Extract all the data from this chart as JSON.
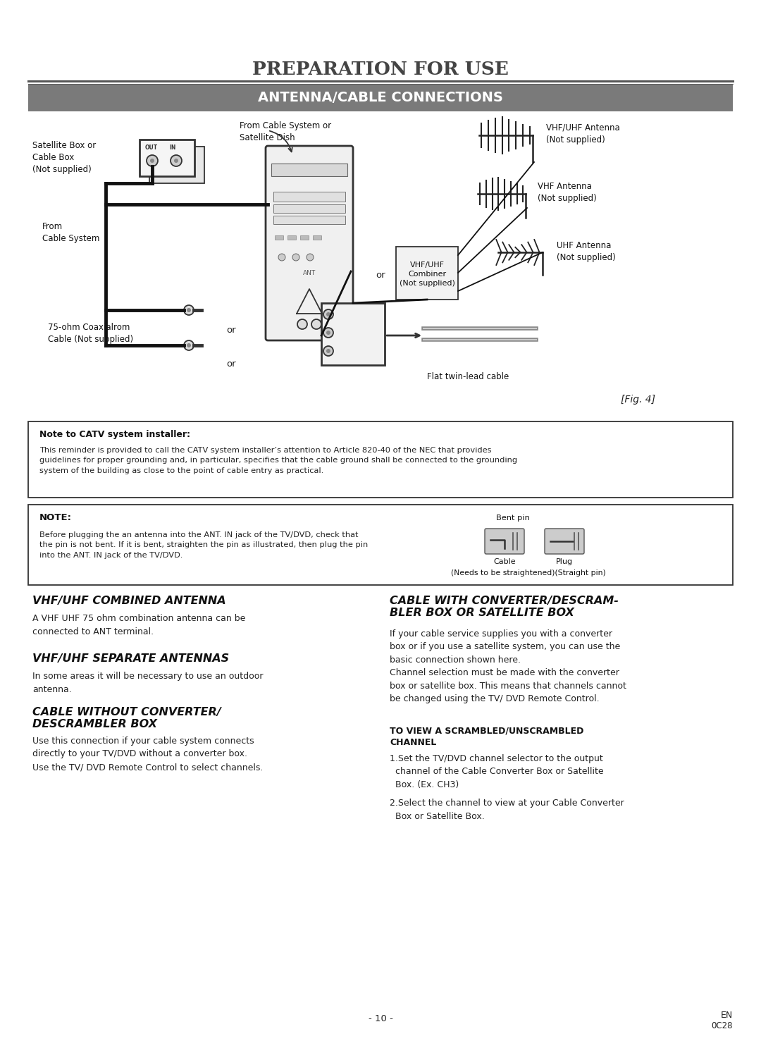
{
  "title": "PREPARATION FOR USE",
  "subtitle": "ANTENNA/CABLE CONNECTIONS",
  "subtitle_bg": "#7a7a7a",
  "subtitle_fg": "#ffffff",
  "bg_color": "#ffffff",
  "page_number": "- 10 -",
  "page_code_line1": "EN",
  "page_code_line2": "0C28",
  "catv_note_title": "Note to CATV system installer:",
  "catv_note_body": "This reminder is provided to call the CATV system installer’s attention to Article 820-40 of the NEC that provides\nguidelines for proper grounding and, in particular, specifies that the cable ground shall be connected to the grounding\nsystem of the building as close to the point of cable entry as practical.",
  "note_title": "NOTE:",
  "note_body": "Before plugging the an antenna into the ANT. IN jack of the TV/DVD, check that\nthe pin is not bent. If it is bent, straighten the pin as illustrated, then plug the pin\ninto the ANT. IN jack of the TV/DVD.",
  "note_caption": "(Needs to be straightened)(Straight pin)",
  "note_cable_label": "Cable",
  "note_plug_label": "Plug",
  "bent_pin_label": "Bent pin",
  "section1_title": "VHF/UHF COMBINED ANTENNA",
  "section1_body": "A VHF UHF 75 ohm combination antenna can be\nconnected to ANT terminal.",
  "section2_title": "VHF/UHF SEPARATE ANTENNAS",
  "section2_body": "In some areas it will be necessary to use an outdoor\nantenna.",
  "section3_title": "CABLE WITHOUT CONVERTER/\nDESCRAMBLER BOX",
  "section3_body": "Use this connection if your cable system connects\ndirectly to your TV/DVD without a converter box.\nUse the TV/ DVD Remote Control to select channels.",
  "section4_title": "CABLE WITH CONVERTER/DESCRAM-\nBLER BOX OR SATELLITE BOX",
  "section4_body": "If your cable service supplies you with a converter\nbox or if you use a satellite system, you can use the\nbasic connection shown here.\nChannel selection must be made with the converter\nbox or satellite box. This means that channels cannot\nbe changed using the TV/ DVD Remote Control.",
  "section4_bold_title": "TO VIEW A SCRAMBLED/UNSCRAMBLED\nCHANNEL",
  "section4_item1": "1.Set the TV/DVD channel selector to the output\n  channel of the Cable Converter Box or Satellite\n  Box. (Ex. CH3)",
  "section4_item2": "2.Select the channel to view at your Cable Converter\n  Box or Satellite Box.",
  "lbl_satellite": "Satellite Box or\nCable Box\n(Not supplied)",
  "lbl_from_cable": "From\nCable System",
  "lbl_from_cable2": "From Cable System or\nSatellite Dish",
  "lbl_coax": "75-ohm Coaxialrom\nCable (Not supplied)",
  "lbl_vhf_uhf_ant": "VHF/UHF Antenna\n(Not supplied)",
  "lbl_vhf_ant": "VHF Antenna\n(Not supplied)",
  "lbl_uhf_ant": "UHF Antenna\n(Not supplied)",
  "lbl_combiner": "VHF/UHF\nCombiner\n(Not supplied)",
  "lbl_flat": "Flat twin-lead cable",
  "lbl_fig4": "[Fig. 4]",
  "lbl_or": "or"
}
